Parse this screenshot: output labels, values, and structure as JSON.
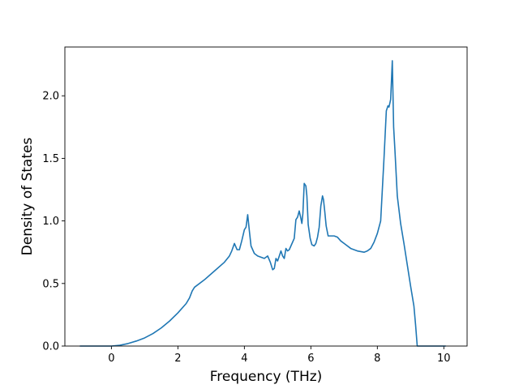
{
  "chart_data": {
    "type": "line",
    "title": "",
    "xlabel": "Frequency (THz)",
    "ylabel": "Density of States",
    "xlim": [
      -1.4,
      10.7
    ],
    "ylim": [
      0.0,
      2.39
    ],
    "xticks": [
      0,
      2,
      4,
      6,
      8,
      10
    ],
    "xtick_labels": [
      "0",
      "2",
      "4",
      "6",
      "8",
      "10"
    ],
    "yticks": [
      0.0,
      0.5,
      1.0,
      1.5,
      2.0
    ],
    "ytick_labels": [
      "0.0",
      "0.5",
      "1.0",
      "1.5",
      "2.0"
    ],
    "grid": false,
    "line_color": "#1f77b4",
    "series": [
      {
        "x": [
          -0.94,
          -0.5,
          0.0,
          0.25,
          0.5,
          0.75,
          1.0,
          1.25,
          1.5,
          1.75,
          2.0,
          2.25,
          2.35,
          2.43,
          2.5,
          2.8,
          3.1,
          3.4,
          3.55,
          3.62,
          3.7,
          3.78,
          3.85,
          3.92,
          4.0,
          4.05,
          4.1,
          4.15,
          4.2,
          4.3,
          4.4,
          4.5,
          4.6,
          4.7,
          4.78,
          4.85,
          4.9,
          4.95,
          5.0,
          5.05,
          5.1,
          5.15,
          5.2,
          5.25,
          5.3,
          5.35,
          5.4,
          5.5,
          5.55,
          5.6,
          5.65,
          5.7,
          5.73,
          5.76,
          5.8,
          5.85,
          5.88,
          5.92,
          5.98,
          6.03,
          6.1,
          6.15,
          6.2,
          6.25,
          6.3,
          6.35,
          6.38,
          6.42,
          6.46,
          6.52,
          6.6,
          6.7,
          6.8,
          6.9,
          7.0,
          7.2,
          7.4,
          7.6,
          7.7,
          7.8,
          7.9,
          8.0,
          8.1,
          8.2,
          8.27,
          8.32,
          8.35,
          8.4,
          8.45,
          8.49,
          8.53,
          8.6,
          8.7,
          8.8,
          8.9,
          9.0,
          9.1,
          9.15,
          9.2,
          9.3,
          9.6,
          10.05
        ],
        "y": [
          0.0,
          0.0,
          0.0,
          0.006,
          0.02,
          0.04,
          0.065,
          0.1,
          0.145,
          0.2,
          0.265,
          0.34,
          0.385,
          0.44,
          0.47,
          0.53,
          0.6,
          0.67,
          0.72,
          0.76,
          0.82,
          0.77,
          0.77,
          0.84,
          0.93,
          0.95,
          1.05,
          0.92,
          0.8,
          0.74,
          0.72,
          0.71,
          0.7,
          0.72,
          0.67,
          0.61,
          0.62,
          0.7,
          0.68,
          0.72,
          0.76,
          0.72,
          0.7,
          0.78,
          0.76,
          0.77,
          0.8,
          0.86,
          1.01,
          1.03,
          1.08,
          1.02,
          0.98,
          1.06,
          1.3,
          1.28,
          1.2,
          0.97,
          0.86,
          0.81,
          0.8,
          0.82,
          0.87,
          0.95,
          1.12,
          1.2,
          1.17,
          1.07,
          0.96,
          0.88,
          0.88,
          0.88,
          0.87,
          0.84,
          0.82,
          0.78,
          0.76,
          0.75,
          0.76,
          0.78,
          0.83,
          0.9,
          1.0,
          1.5,
          1.88,
          1.92,
          1.91,
          1.97,
          2.28,
          1.75,
          1.56,
          1.2,
          0.98,
          0.82,
          0.65,
          0.48,
          0.32,
          0.17,
          0.0,
          0.0,
          0.0,
          0.0
        ]
      }
    ]
  }
}
